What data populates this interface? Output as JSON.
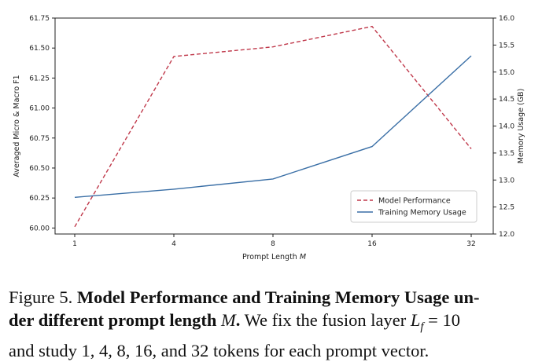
{
  "chart_data": {
    "type": "line",
    "x": [
      1,
      4,
      8,
      16,
      32
    ],
    "x_tick_labels": [
      "1",
      "4",
      "8",
      "16",
      "32"
    ],
    "xlabel": "Prompt Length",
    "xlabel_var": "M",
    "ylabel_left": "Averaged Micro & Macro F1",
    "ylabel_right": "Memory Usage (GB)",
    "y_left_lim": [
      59.95,
      61.75
    ],
    "y_left_ticks": [
      "60.00",
      "60.25",
      "60.50",
      "60.75",
      "61.00",
      "61.25",
      "61.50",
      "61.75"
    ],
    "y_right_lim": [
      12.0,
      16.0
    ],
    "y_right_ticks": [
      "12.0",
      "12.5",
      "13.0",
      "13.5",
      "14.0",
      "14.5",
      "15.0",
      "15.5",
      "16.0"
    ],
    "series": [
      {
        "name": "Model Performance",
        "axis": "left",
        "color": "#c0394b",
        "style": "dashed",
        "values": [
          60.01,
          61.43,
          61.51,
          61.68,
          60.66
        ]
      },
      {
        "name": "Training Memory Usage",
        "axis": "right",
        "color": "#3a6fa6",
        "style": "solid",
        "values": [
          12.68,
          12.83,
          13.02,
          13.62,
          15.3
        ]
      }
    ],
    "legend_position": "lower-right",
    "grid": false
  },
  "caption": {
    "label": "Figure 5.",
    "title_bold_1": "Model Performance and Training Memory Usage un-",
    "title_bold_2": "der different prompt length",
    "title_var": "M",
    "title_dot": ".",
    "text_1": "We fix the fusion layer",
    "text_var": "L",
    "text_sub": "f",
    "text_eq": "= 10",
    "text_2": "and study 1, 4, 8, 16, and 32 tokens for each prompt vector."
  }
}
